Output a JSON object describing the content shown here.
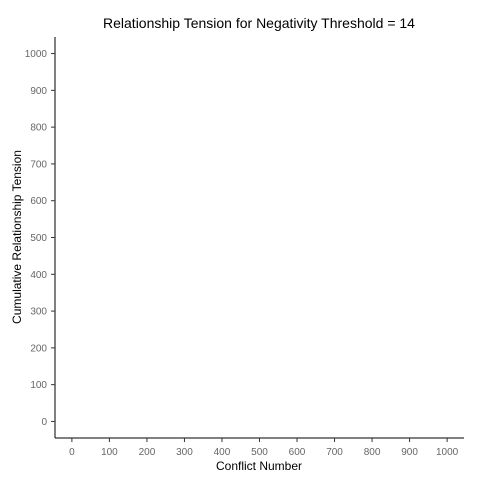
{
  "chart_data": {
    "type": "line",
    "title": "Relationship Tension for Negativity Threshold = 14",
    "xlabel": "Conflict Number",
    "ylabel": "Cumulative Relationship Tension",
    "x_ticks": [
      "0",
      "100",
      "200",
      "300",
      "400",
      "500",
      "600",
      "700",
      "800",
      "900",
      "1000"
    ],
    "y_ticks": [
      "0",
      "100",
      "200",
      "300",
      "400",
      "500",
      "600",
      "700",
      "800",
      "900",
      "1000"
    ],
    "xlim": [
      -45,
      1045
    ],
    "ylim": [
      -45,
      1045
    ],
    "grid": false,
    "series": []
  }
}
